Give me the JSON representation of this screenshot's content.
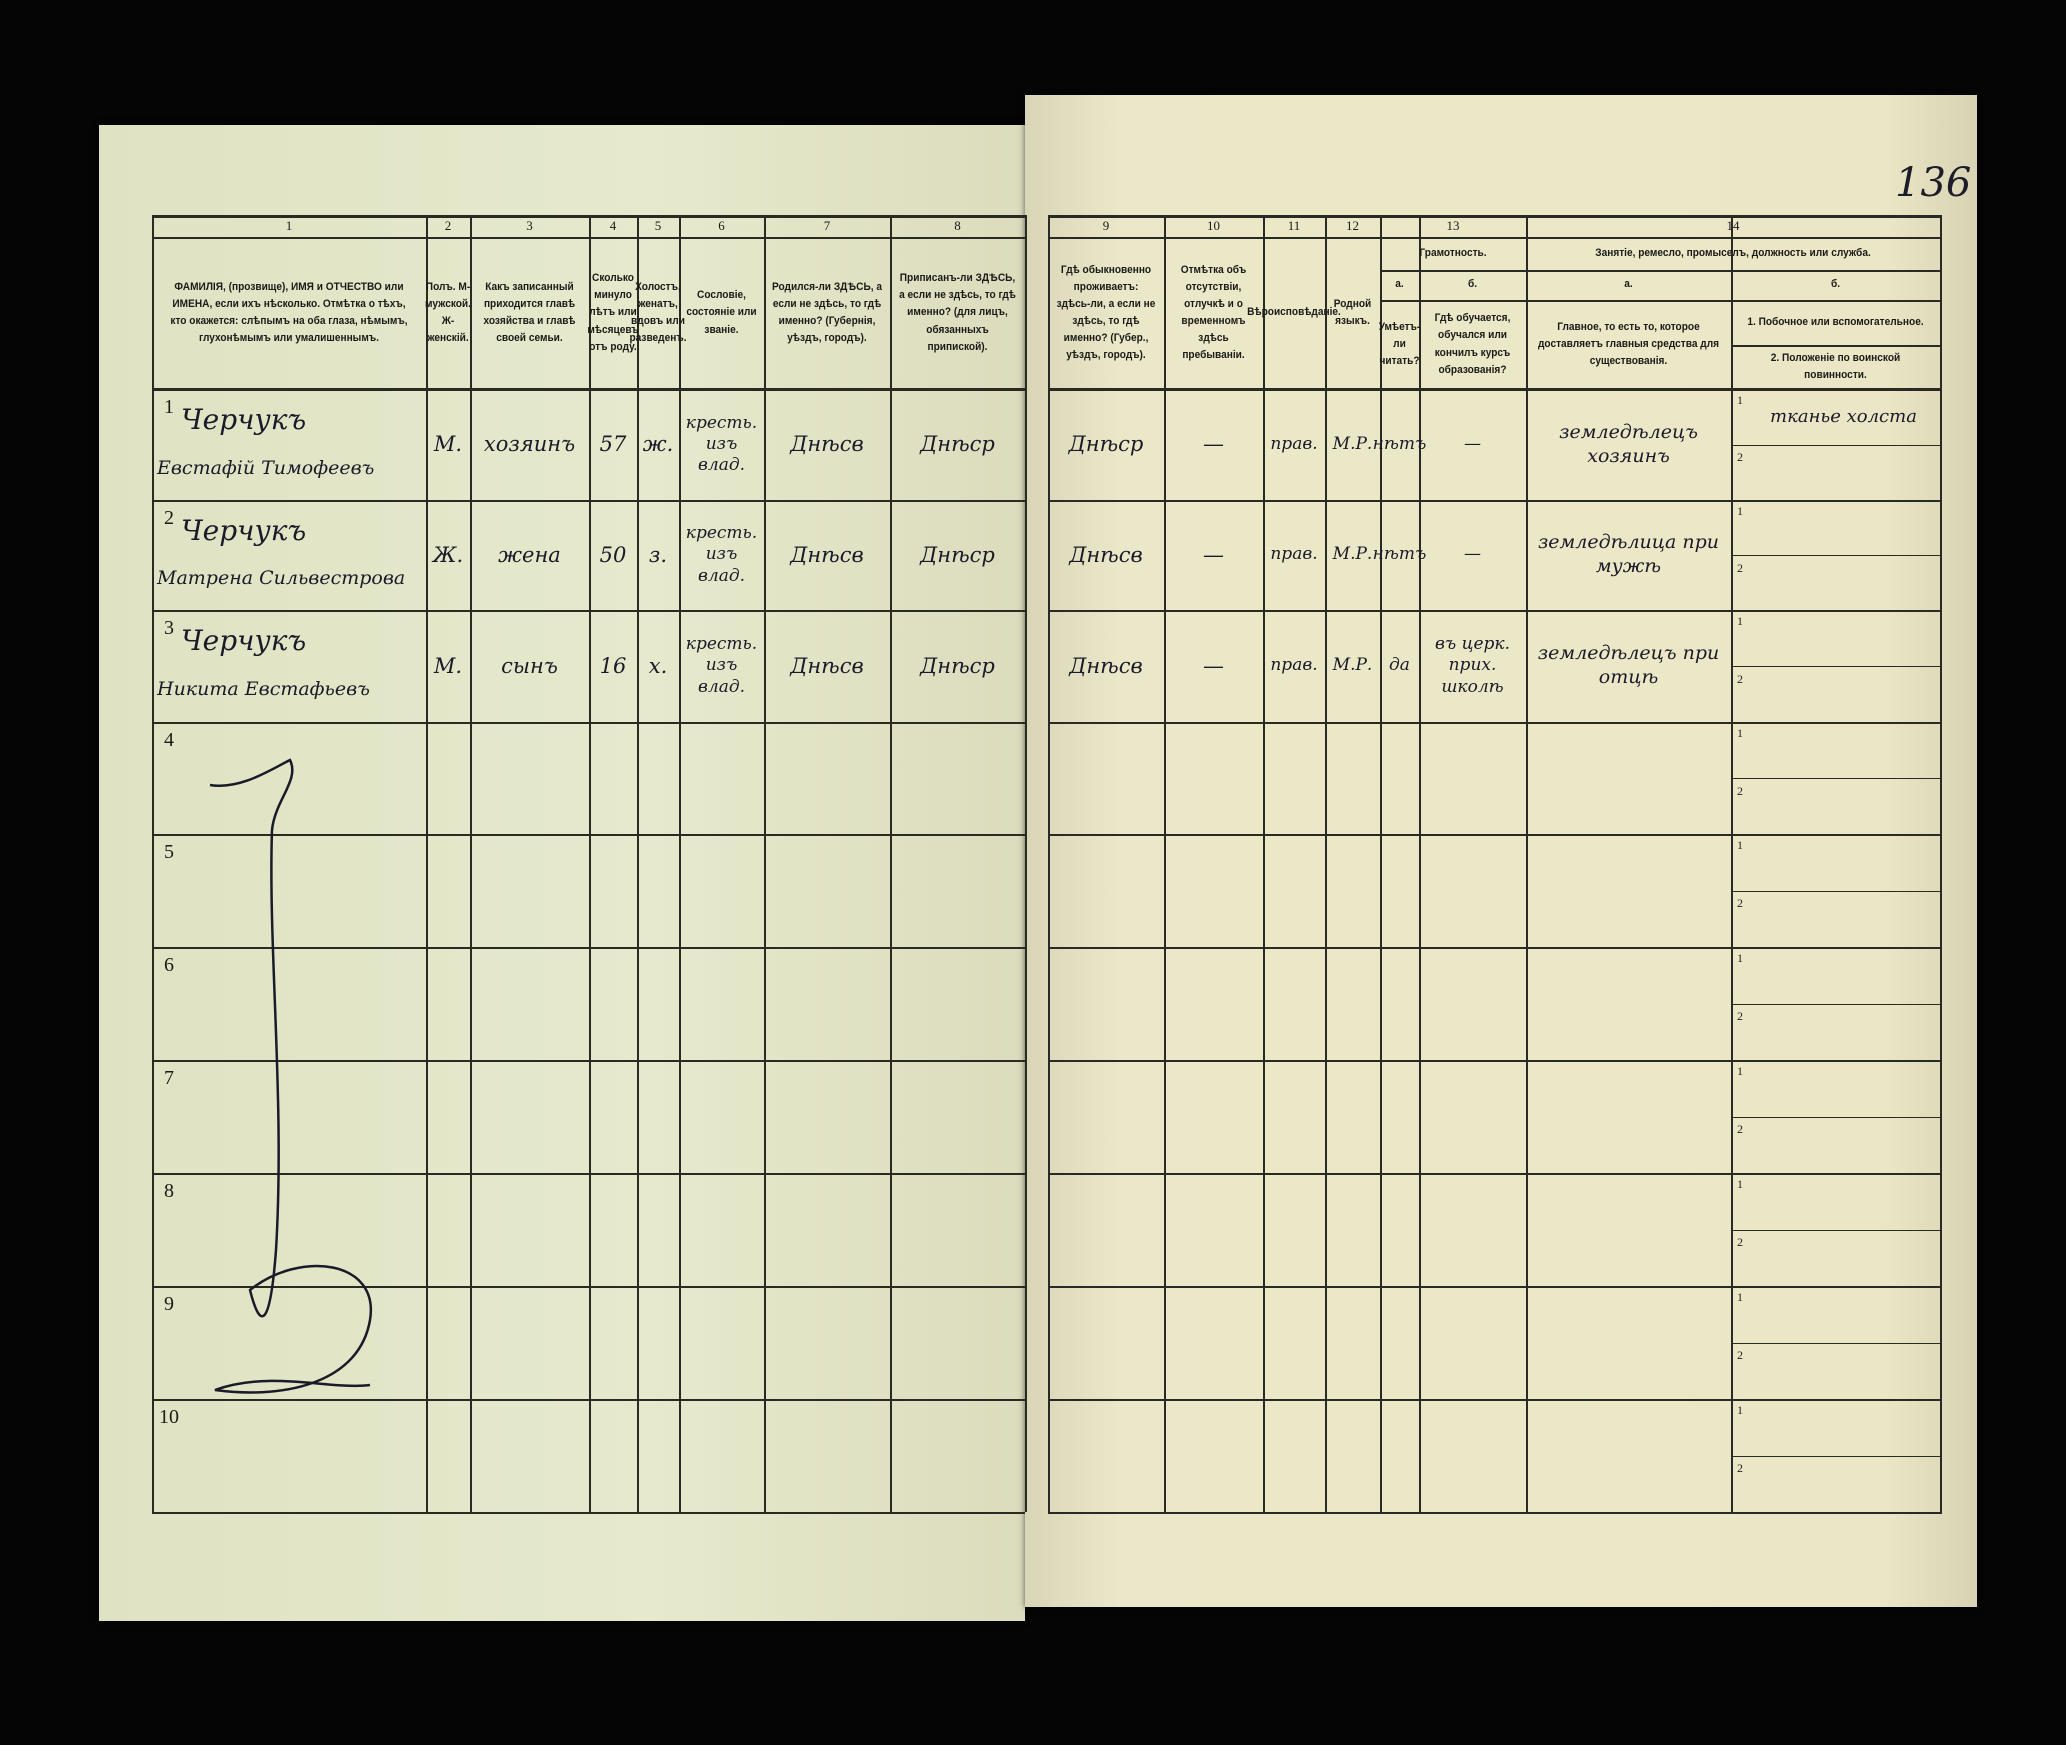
{
  "page_number": "136",
  "header": {
    "column_numbers": [
      "1",
      "2",
      "3",
      "4",
      "5",
      "6",
      "7",
      "8",
      "9",
      "10",
      "11",
      "12",
      "13",
      "14"
    ],
    "col1": "ФАМИЛІЯ, (прозвище), ИМЯ и ОТЧЕСТВО или ИМЕНА, если ихъ нѣсколько. Отмѣтка о тѣхъ, кто окажется: слѣпымъ на оба глаза, нѣмымъ, глухонѣмымъ или умалишеннымъ.",
    "col2": "Полъ. М-мужской. Ж-женскій.",
    "col3": "Какъ записанный приходится главѣ хозяйства и главѣ своей семьи.",
    "col4": "Сколько минуло лѣтъ или мѣсяцевъ отъ роду.",
    "col5": "Холостъ, женатъ, вдовъ или разведенъ.",
    "col6": "Сословіе, состояніе или званіе.",
    "col7": "Родился-ли ЗДѢСЬ, а если не здѣсь, то гдѣ именно? (Губернія, уѣздъ, городъ).",
    "col8": "Приписанъ-ли ЗДѢСЬ, а если не здѣсь, то гдѣ именно? (для лицъ, обязанныхъ припиской).",
    "col9": "Гдѣ обыкновенно проживаетъ: здѣсь-ли, а если не здѣсь, то гдѣ именно? (Губер., уѣздъ, городъ).",
    "col10": "Отмѣтка объ отсутствіи, отлучкѣ и о временномъ здѣсь пребываніи.",
    "col11": "Вѣроисповѣданіе.",
    "col12": "Родной языкъ.",
    "col13_group": "Грамотность.",
    "col13a_letter": "а.",
    "col13a": "Умѣетъ-ли читать?",
    "col13b_letter": "б.",
    "col13b": "Гдѣ обучается, обучался или кончилъ курсъ образованія?",
    "col14_group": "Занятіе, ремесло, промыселъ, должность или служба.",
    "col14a_letter": "а.",
    "col14a": "Главное, то есть то, которое доставляетъ главныя средства для существованія.",
    "col14b_letter": "б.",
    "col14b1": "1. Побочное или вспомогательное.",
    "col14b2": "2. Положеніе по воинской повинности."
  },
  "row_numbers": [
    "1",
    "2",
    "3",
    "4",
    "5",
    "6",
    "7",
    "8",
    "9",
    "10"
  ],
  "sub_labels": [
    "1",
    "2"
  ],
  "rows": [
    {
      "surname": "Черчукъ",
      "given": "Евстафій Тимофеевъ",
      "sex": "М.",
      "relation": "хозяинъ",
      "age": "57",
      "marital": "ж.",
      "estate": "кресть. изъ влад.",
      "birthplace": "Днѣсв",
      "registered": "Днѣср",
      "residence": "Днѣср",
      "absence": "—",
      "religion": "прав.",
      "language": "М.Р.",
      "literate": "нѣтъ",
      "school": "—",
      "occupation": "земледѣлецъ хозяинъ",
      "occupation_secondary": "тканье холста"
    },
    {
      "surname": "Черчукъ",
      "given": "Матрена Сильвестрова",
      "sex": "Ж.",
      "relation": "жена",
      "age": "50",
      "marital": "з.",
      "estate": "кресть. изъ влад.",
      "birthplace": "Днѣсв",
      "registered": "Днѣср",
      "residence": "Днѣсв",
      "absence": "—",
      "religion": "прав.",
      "language": "М.Р.",
      "literate": "нѣтъ",
      "school": "—",
      "occupation": "земледѣлица при мужѣ",
      "occupation_secondary": ""
    },
    {
      "surname": "Черчукъ",
      "given": "Никита Евстафьевъ",
      "sex": "М.",
      "relation": "сынъ",
      "age": "16",
      "marital": "х.",
      "estate": "кресть. изъ влад.",
      "birthplace": "Днѣсв",
      "registered": "Днѣср",
      "residence": "Днѣсв",
      "absence": "—",
      "religion": "прав.",
      "language": "М.Р.",
      "literate": "да",
      "school": "въ церк. прих. школѣ",
      "occupation": "земледѣлецъ при отцѣ",
      "occupation_secondary": ""
    }
  ],
  "colors": {
    "paper_left": "#e6e9cc",
    "paper_right": "#ebe7c6",
    "ink_print": "#2a2a24",
    "ink_hand": "#1a1a28",
    "background": "#050505"
  }
}
